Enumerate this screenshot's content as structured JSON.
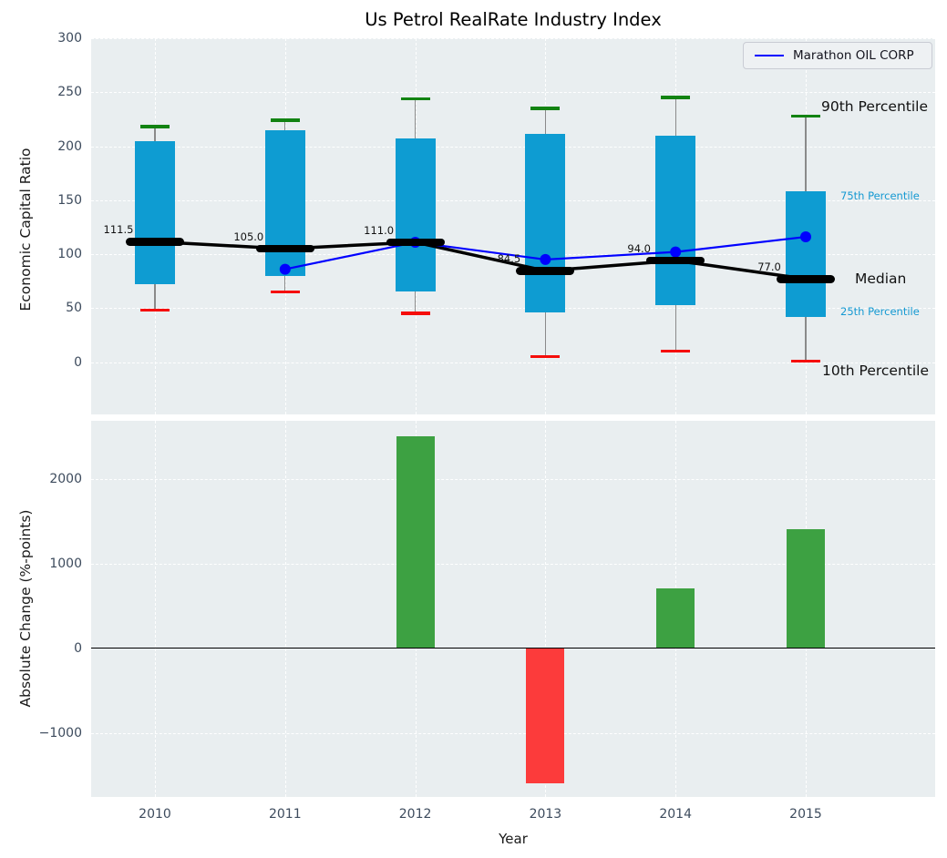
{
  "title": "Us Petrol RealRate Industry Index",
  "colors": {
    "panel_bg": "#e9eef0",
    "grid": "#ffffff",
    "box_fill": "#0e9cd2",
    "whisker": "#8a8a8a",
    "cap_high": "#128312",
    "cap_low": "#f50d0a",
    "median": "#000000",
    "company_line": "#0000ff",
    "bar_positive": "#3da142",
    "bar_negative": "#fc3b3b",
    "tick_label": "#3d4b5d",
    "annotation_dark": "#111111",
    "annotation_cyan": "#1599d2",
    "zero_line": "#000000"
  },
  "chart_data": [
    {
      "type": "boxplot+line",
      "title": "Us Petrol RealRate Industry Index",
      "ylabel": "Economic Capital Ratio",
      "yticks": [
        0,
        50,
        100,
        150,
        200,
        250,
        300
      ],
      "ylim": [
        -48.5,
        300
      ],
      "grid": true,
      "legend_position": "upper right",
      "years": [
        2010,
        2011,
        2012,
        2013,
        2014,
        2015
      ],
      "boxes": [
        {
          "year": 2010,
          "p10": 48,
          "p25": 72,
          "median": 111.5,
          "p75": 205,
          "p90": 218
        },
        {
          "year": 2011,
          "p10": 65,
          "p25": 80,
          "median": 105.0,
          "p75": 215,
          "p90": 224
        },
        {
          "year": 2012,
          "p10": 45,
          "p25": 65,
          "median": 111.0,
          "p75": 207,
          "p90": 244
        },
        {
          "year": 2013,
          "p10": 5,
          "p25": 46,
          "median": 84.5,
          "p75": 211,
          "p90": 235
        },
        {
          "year": 2014,
          "p10": 10,
          "p25": 53,
          "median": 94.0,
          "p75": 210,
          "p90": 245
        },
        {
          "year": 2015,
          "p10": 1,
          "p25": 42,
          "median": 77.0,
          "p75": 158,
          "p90": 228
        }
      ],
      "median_labels": [
        "111.5",
        "105.0",
        "111.0",
        "84.5",
        "94.0",
        "77.0"
      ],
      "series": [
        {
          "name": "Marathon OIL CORP",
          "x": [
            2011,
            2012,
            2013,
            2014,
            2015
          ],
          "values": [
            86,
            111,
            95,
            102,
            116
          ]
        }
      ],
      "annotations": [
        "90th Percentile",
        "75th Percentile",
        "Median",
        "25th Percentile",
        "10th Percentile"
      ]
    },
    {
      "type": "bar",
      "ylabel": "Absolute Change (%-points)",
      "xlabel": "Year",
      "yticks": [
        -1000,
        0,
        1000,
        2000
      ],
      "ylim": [
        -1758,
        2683
      ],
      "grid": true,
      "categories": [
        2010,
        2011,
        2012,
        2013,
        2014,
        2015
      ],
      "values": [
        null,
        null,
        2500,
        -1600,
        700,
        1400
      ]
    }
  ]
}
